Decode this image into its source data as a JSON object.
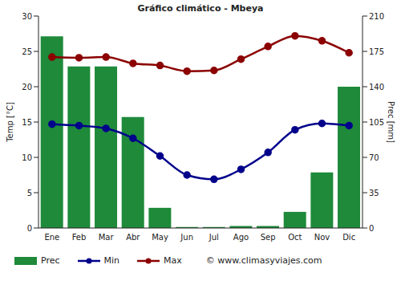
{
  "chart_data": {
    "type": "bar",
    "title": "Gráfico climático - Mbeya",
    "categories": [
      "Ene",
      "Feb",
      "Mar",
      "Abr",
      "May",
      "Jun",
      "Jul",
      "Ago",
      "Sep",
      "Oct",
      "Nov",
      "Dic"
    ],
    "series": [
      {
        "name": "Prec",
        "type": "bar",
        "axis": "y2",
        "color": "#1e8a3a",
        "values": [
          190,
          160,
          160,
          110,
          20,
          1,
          1,
          2,
          2,
          16,
          55,
          140
        ]
      },
      {
        "name": "Min",
        "type": "line",
        "color": "#00008b",
        "marker": "circle",
        "values": [
          14.7,
          14.5,
          14.1,
          12.7,
          10.2,
          7.5,
          6.9,
          8.3,
          10.7,
          13.9,
          14.8,
          14.5
        ]
      },
      {
        "name": "Max",
        "type": "line",
        "color": "#8b0000",
        "marker": "circle",
        "values": [
          24.2,
          24.1,
          24.2,
          23.3,
          23.0,
          22.2,
          22.3,
          23.9,
          25.7,
          27.2,
          26.5,
          24.8
        ]
      }
    ],
    "ylabel": "Temp [°C]",
    "y2label": "Prec [mm]",
    "ylim": [
      0,
      30
    ],
    "yticks": [
      0,
      5,
      10,
      15,
      20,
      25,
      30
    ],
    "y2lim": [
      0,
      210
    ],
    "y2ticks": [
      0,
      35,
      70,
      105,
      140,
      175,
      210
    ],
    "grid": false,
    "legend": "bottom",
    "annotations": [
      "© www.climasyviajes.com"
    ]
  }
}
